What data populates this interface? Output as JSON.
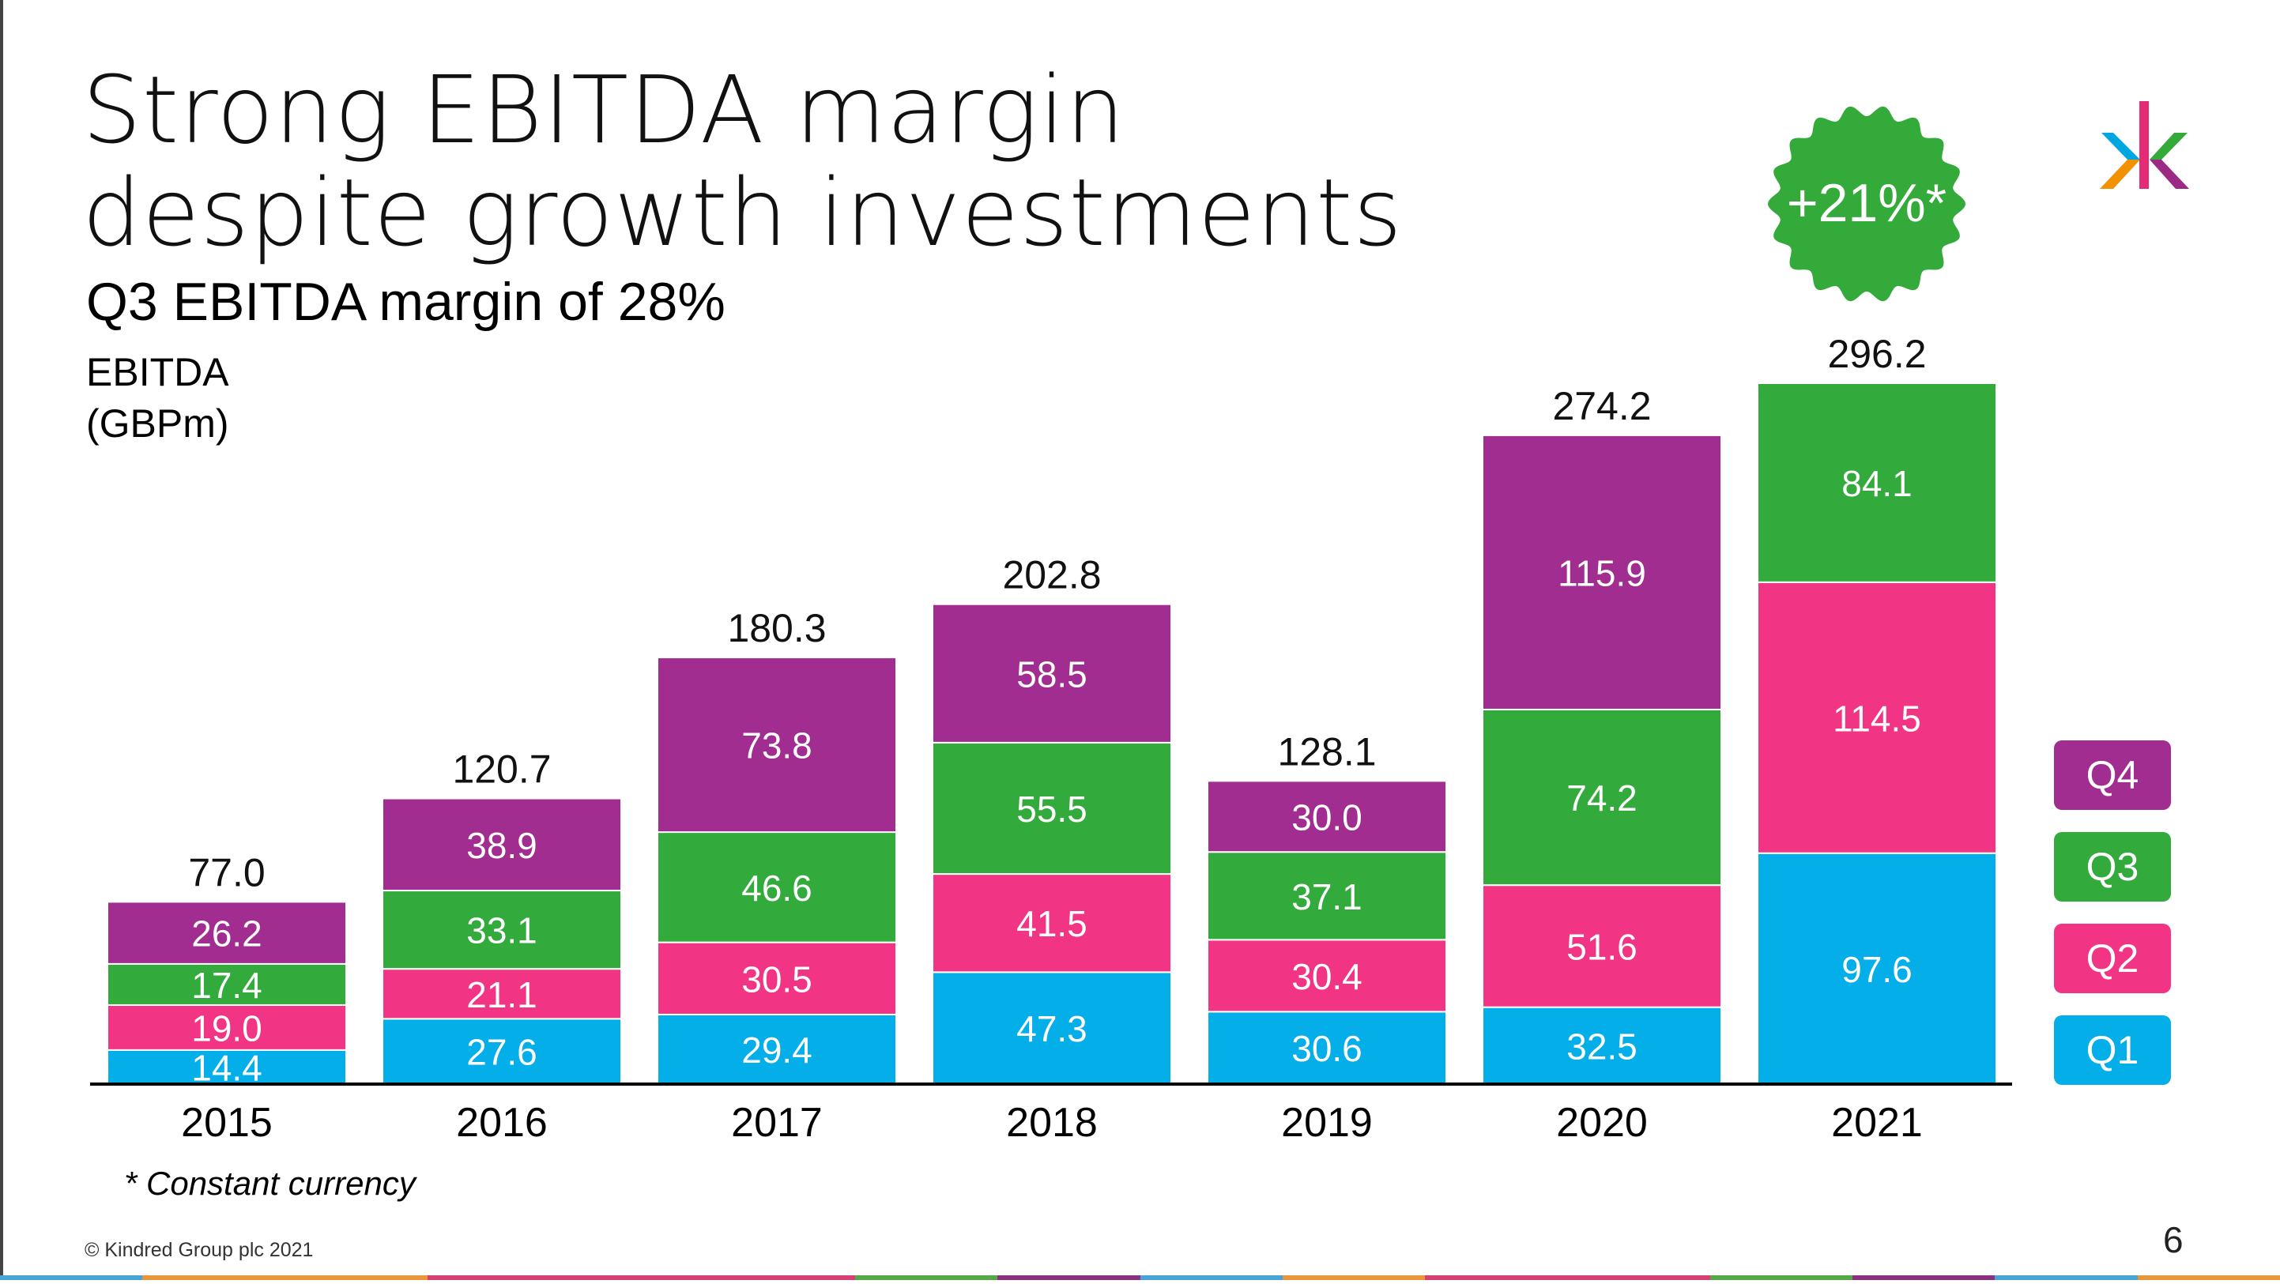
{
  "title_lines": [
    "Strong EBITDA margin",
    "despite growth investments"
  ],
  "subtitle": "Q3 EBITDA margin of 28%",
  "unit_label": [
    "EBITDA",
    "(GBPm)"
  ],
  "badge": {
    "text": "+21%*",
    "color": "#33aa3a"
  },
  "footnote": "* Constant currency",
  "copyright": "© Kindred Group plc 2021",
  "page_number": "6",
  "logo": {
    "colors": [
      "#00a6df",
      "#f39200",
      "#e52b73",
      "#33aa3a",
      "#9c2a85"
    ]
  },
  "chart_data": {
    "type": "bar",
    "stacked": true,
    "title": "EBITDA (GBPm)",
    "categories": [
      "2015",
      "2016",
      "2017",
      "2018",
      "2019",
      "2020",
      "2021"
    ],
    "series": [
      {
        "name": "Q1",
        "color": "#03aee9",
        "values": [
          14.4,
          27.6,
          29.4,
          47.3,
          30.6,
          32.5,
          97.6
        ]
      },
      {
        "name": "Q2",
        "color": "#f13484",
        "values": [
          19.0,
          21.1,
          30.5,
          41.5,
          30.4,
          51.6,
          114.5
        ]
      },
      {
        "name": "Q3",
        "color": "#33ab3c",
        "values": [
          17.4,
          33.1,
          46.6,
          55.5,
          37.1,
          74.2,
          84.1
        ]
      },
      {
        "name": "Q4",
        "color": "#a02d8f",
        "values": [
          26.2,
          38.9,
          73.8,
          58.5,
          30.0,
          115.9,
          null
        ]
      }
    ],
    "totals": [
      "77.0",
      "120.7",
      "180.3",
      "202.8",
      "128.1",
      "274.2",
      "296.2"
    ],
    "ylim": [
      0,
      300
    ],
    "legend": [
      "Q4",
      "Q3",
      "Q2",
      "Q1"
    ],
    "legend_placement": "right"
  },
  "stripe_colors": [
    "#4aa3d6",
    "#e8963a",
    "#e8963a",
    "#d63f74",
    "#d63f74",
    "#d63f74",
    "#55a848",
    "#8b3182",
    "#4aa3d6",
    "#e8963a",
    "#d63f74",
    "#d63f74",
    "#55a848",
    "#8b3182",
    "#4aa3d6",
    "#e8963a"
  ]
}
